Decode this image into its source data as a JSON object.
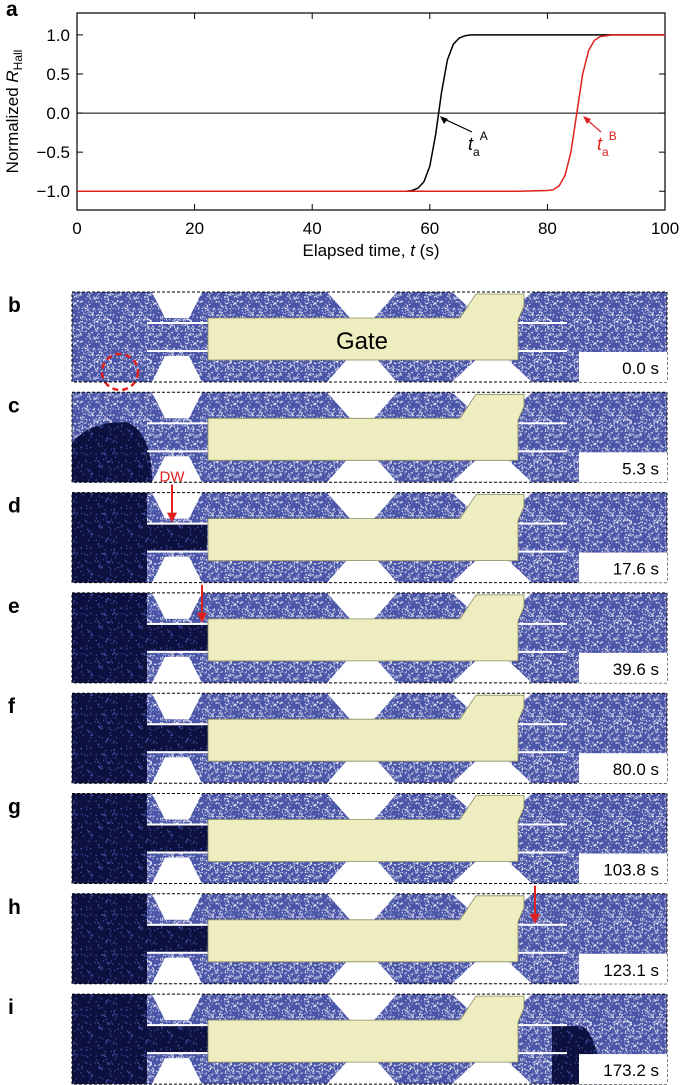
{
  "chart_data": {
    "type": "line",
    "panel_label": "a",
    "xlabel": {
      "text": "Elapsed time, ",
      "var": "t",
      "unit": " (s)"
    },
    "ylabel": {
      "text": "Normalized ",
      "var": "R",
      "sub": "Hall"
    },
    "x": [
      0,
      5,
      10,
      15,
      20,
      25,
      30,
      35,
      40,
      45,
      50,
      55,
      56,
      57,
      58,
      59,
      60,
      61,
      62,
      63,
      64,
      65,
      66,
      67,
      68,
      70,
      75,
      80,
      81,
      82,
      83,
      84,
      85,
      86,
      87,
      88,
      89,
      90,
      91,
      92,
      95,
      100
    ],
    "series": [
      {
        "name": "A",
        "color": "#000000",
        "values": [
          -1,
          -1,
          -1,
          -1,
          -1,
          -1,
          -1,
          -1,
          -1,
          -1,
          -1,
          -1,
          -1,
          -0.99,
          -0.96,
          -0.88,
          -0.68,
          -0.27,
          0.27,
          0.68,
          0.88,
          0.96,
          0.99,
          1,
          1,
          1,
          1,
          1,
          1,
          1,
          1,
          1,
          1,
          1,
          1,
          1,
          1,
          1,
          1,
          1,
          1,
          1
        ]
      },
      {
        "name": "B",
        "color": "#e0201c",
        "values": [
          -1,
          -1,
          -1,
          -1,
          -1,
          -1,
          -1,
          -1,
          -1,
          -1,
          -1,
          -1,
          -1,
          -1,
          -1,
          -1,
          -1,
          -1,
          -1,
          -1,
          -1,
          -1,
          -1,
          -1,
          -1,
          -1,
          -1,
          -0.99,
          -0.98,
          -0.93,
          -0.8,
          -0.5,
          0,
          0.5,
          0.8,
          0.93,
          0.98,
          0.99,
          1,
          1,
          1,
          1
        ]
      }
    ],
    "annotations": [
      {
        "text": "t",
        "sub": "a",
        "sup": "A",
        "color": "#000000"
      },
      {
        "text": "t",
        "sub": "a",
        "sup": "B",
        "color": "#e0201c"
      }
    ],
    "hline": 0,
    "xlim": [
      0,
      100
    ],
    "xticks": [
      0,
      20,
      40,
      60,
      80,
      100
    ],
    "ylim": [
      -1.24,
      1.28
    ],
    "yticks": [
      {
        "value": -1,
        "label": "−1.0"
      },
      {
        "value": -0.5,
        "label": "−0.5"
      },
      {
        "value": 0,
        "label": "0.0"
      },
      {
        "value": 0.5,
        "label": "0.5"
      },
      {
        "value": 1,
        "label": "1.0"
      }
    ]
  },
  "gate_label": "Gate",
  "dw_label": "DW",
  "panels": [
    {
      "label": "b",
      "time": "0.0 s"
    },
    {
      "label": "c",
      "time": "5.3 s"
    },
    {
      "label": "d",
      "time": "17.6 s"
    },
    {
      "label": "e",
      "time": "39.6 s"
    },
    {
      "label": "f",
      "time": "80.0 s"
    },
    {
      "label": "g",
      "time": "103.8 s"
    },
    {
      "label": "h",
      "time": "123.1 s"
    },
    {
      "label": "i",
      "time": "173.2 s"
    }
  ]
}
